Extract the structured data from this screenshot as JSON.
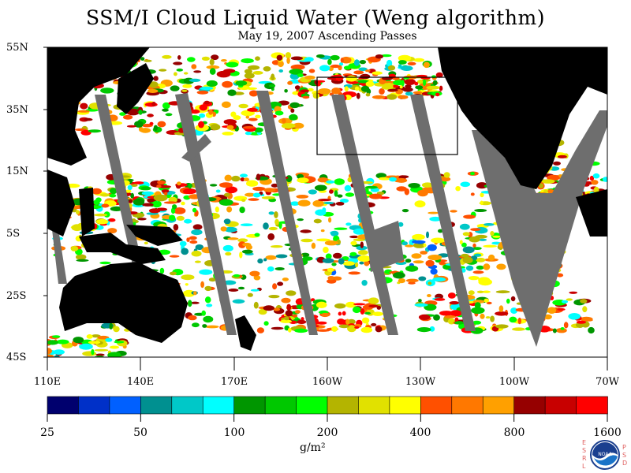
{
  "title": "SSM/I Cloud Liquid Water (Weng algorithm)",
  "subtitle": "May 19, 2007  Ascending Passes",
  "lat_labels": [
    "55N",
    "35N",
    "15N",
    "5S",
    "25S",
    "45S"
  ],
  "lon_labels": [
    "110E",
    "140E",
    "170E",
    "160W",
    "130W",
    "100W",
    "70W"
  ],
  "colorbar": {
    "colors": [
      "#00006e",
      "#0030c8",
      "#0060ff",
      "#009090",
      "#00c8c8",
      "#00ffff",
      "#009600",
      "#00c800",
      "#00ff00",
      "#b4b400",
      "#e1e100",
      "#ffff00",
      "#ff5000",
      "#ff7800",
      "#ffa000",
      "#960000",
      "#c80000",
      "#ff0000"
    ],
    "tick_labels": [
      "25",
      "50",
      "100",
      "200",
      "400",
      "800",
      "1600"
    ],
    "units": "g/m²"
  },
  "logo": {
    "letters_left": [
      "E",
      "S",
      "R",
      "L"
    ],
    "letters_right": [
      "P",
      "S",
      "D"
    ],
    "center_text": "NOAA"
  }
}
